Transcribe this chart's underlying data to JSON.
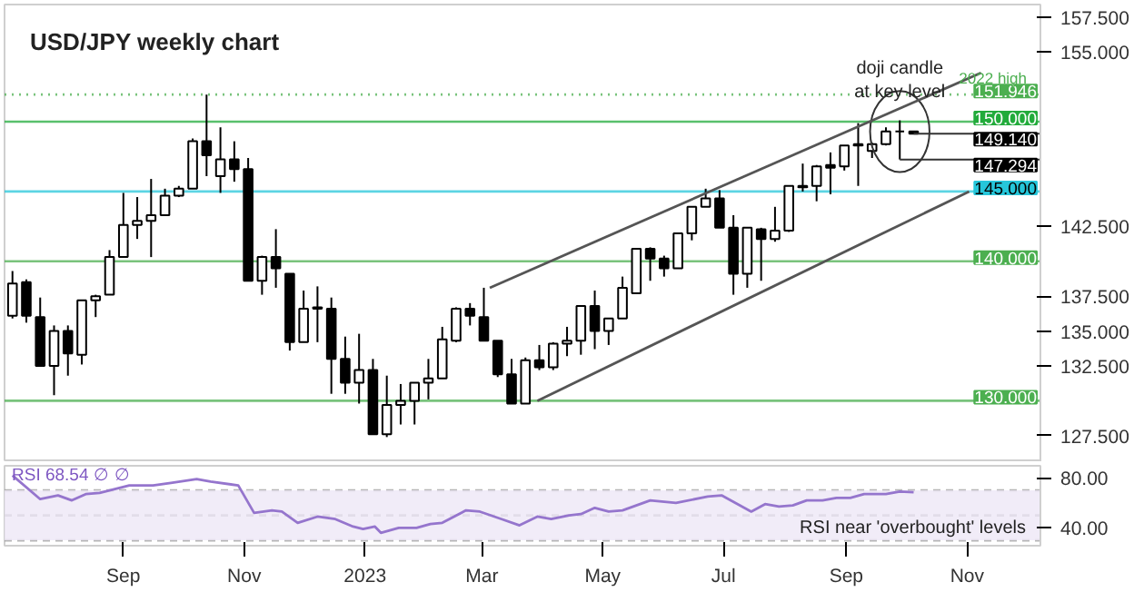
{
  "chart_data": [
    {
      "type": "candlestick",
      "title": "USD/JPY weekly chart",
      "x": [
        "2022-07-07",
        "2022-07-14",
        "2022-07-21",
        "2022-07-28",
        "2022-08-04",
        "2022-08-11",
        "2022-08-18",
        "2022-08-25",
        "2022-09-01",
        "2022-09-08",
        "2022-09-15",
        "2022-09-22",
        "2022-09-29",
        "2022-10-06",
        "2022-10-13",
        "2022-10-20",
        "2022-10-27",
        "2022-11-03",
        "2022-11-10",
        "2022-11-17",
        "2022-11-24",
        "2022-12-01",
        "2022-12-08",
        "2022-12-15",
        "2022-12-22",
        "2022-12-29",
        "2023-01-05",
        "2023-01-12",
        "2023-01-19",
        "2023-01-26",
        "2023-02-02",
        "2023-02-09",
        "2023-02-16",
        "2023-02-23",
        "2023-03-02",
        "2023-03-09",
        "2023-03-16",
        "2023-03-23",
        "2023-03-30",
        "2023-04-06",
        "2023-04-13",
        "2023-04-20",
        "2023-04-27",
        "2023-05-04",
        "2023-05-11",
        "2023-05-18",
        "2023-05-25",
        "2023-06-01",
        "2023-06-08",
        "2023-06-15",
        "2023-06-22",
        "2023-06-29",
        "2023-07-06",
        "2023-07-13",
        "2023-07-20",
        "2023-07-27",
        "2023-08-03",
        "2023-08-10",
        "2023-08-17",
        "2023-08-24",
        "2023-08-31",
        "2023-09-07",
        "2023-09-14",
        "2023-09-21",
        "2023-09-28",
        "2023-10-05"
      ],
      "ohlc": [
        [
          136.1,
          139.3,
          135.9,
          138.4
        ],
        [
          138.5,
          138.7,
          135.6,
          136.1
        ],
        [
          136.0,
          137.4,
          132.5,
          132.5
        ],
        [
          132.5,
          135.4,
          130.4,
          135.0
        ],
        [
          135.0,
          135.4,
          131.8,
          133.4
        ],
        [
          133.3,
          137.2,
          132.6,
          137.2
        ],
        [
          137.2,
          137.6,
          136.0,
          137.5
        ],
        [
          137.6,
          140.8,
          137.6,
          140.3
        ],
        [
          140.3,
          144.9,
          140.3,
          142.6
        ],
        [
          142.6,
          144.6,
          141.6,
          142.9
        ],
        [
          142.9,
          145.9,
          140.3,
          143.3
        ],
        [
          143.3,
          145.2,
          143.3,
          144.7
        ],
        [
          144.7,
          145.4,
          144.6,
          145.2
        ],
        [
          145.2,
          148.8,
          145.2,
          148.6
        ],
        [
          148.6,
          151.946,
          146.1,
          147.6
        ],
        [
          146.1,
          149.6,
          144.9,
          147.3
        ],
        [
          147.3,
          148.6,
          145.7,
          146.6
        ],
        [
          146.6,
          147.4,
          138.6,
          138.6
        ],
        [
          138.6,
          140.4,
          137.6,
          140.3
        ],
        [
          140.3,
          142.3,
          138.1,
          139.5
        ],
        [
          139.1,
          139.1,
          133.6,
          134.2
        ],
        [
          134.2,
          137.9,
          134.2,
          136.6
        ],
        [
          136.7,
          138.2,
          134.2,
          136.6
        ],
        [
          136.6,
          137.4,
          130.5,
          133.0
        ],
        [
          133.0,
          134.6,
          130.5,
          131.3
        ],
        [
          131.3,
          134.8,
          129.8,
          132.2
        ],
        [
          132.2,
          133.0,
          127.6,
          127.6
        ],
        [
          127.6,
          131.8,
          127.4,
          129.7
        ],
        [
          129.7,
          131.2,
          128.3,
          130.0
        ],
        [
          130.0,
          131.3,
          128.3,
          131.3
        ],
        [
          131.3,
          133.0,
          130.1,
          131.6
        ],
        [
          131.6,
          135.3,
          131.6,
          134.4
        ],
        [
          134.3,
          136.7,
          134.2,
          136.6
        ],
        [
          136.6,
          137.0,
          135.4,
          136.1
        ],
        [
          136.0,
          138.1,
          134.3,
          134.3
        ],
        [
          134.3,
          134.3,
          131.7,
          131.9
        ],
        [
          131.9,
          133.0,
          129.8,
          129.8
        ],
        [
          129.8,
          133.1,
          129.8,
          132.9
        ],
        [
          132.9,
          134.0,
          132.2,
          132.4
        ],
        [
          132.4,
          134.2,
          132.2,
          134.1
        ],
        [
          134.1,
          135.3,
          133.2,
          134.3
        ],
        [
          134.3,
          136.8,
          133.3,
          136.8
        ],
        [
          136.8,
          137.9,
          133.7,
          135.0
        ],
        [
          135.0,
          135.9,
          134.0,
          135.9
        ],
        [
          135.9,
          138.9,
          135.9,
          138.1
        ],
        [
          137.7,
          140.9,
          137.7,
          140.9
        ],
        [
          140.9,
          141.0,
          138.6,
          140.2
        ],
        [
          140.2,
          140.4,
          138.9,
          139.5
        ],
        [
          139.5,
          142.0,
          139.5,
          142.0
        ],
        [
          142.0,
          143.9,
          141.5,
          143.9
        ],
        [
          143.9,
          145.2,
          143.9,
          144.5
        ],
        [
          144.5,
          145.1,
          142.4,
          142.4
        ],
        [
          142.4,
          143.3,
          137.6,
          139.1
        ],
        [
          139.1,
          142.4,
          138.1,
          142.4
        ],
        [
          142.3,
          142.4,
          138.6,
          141.6
        ],
        [
          141.6,
          143.9,
          141.4,
          142.2
        ],
        [
          142.2,
          145.4,
          142.1,
          145.4
        ],
        [
          145.3,
          147.0,
          145.0,
          145.4
        ],
        [
          145.4,
          146.9,
          144.3,
          146.8
        ],
        [
          146.9,
          147.8,
          144.8,
          146.7
        ],
        [
          146.8,
          148.3,
          146.5,
          148.3
        ],
        [
          148.3,
          149.9,
          145.4,
          148.4
        ],
        [
          147.9,
          148.5,
          147.4,
          148.4
        ],
        [
          148.4,
          149.6,
          148.3,
          149.3
        ],
        [
          149.3,
          150.1,
          147.294,
          149.3
        ],
        [
          149.3,
          149.3,
          149.1,
          149.14
        ]
      ],
      "series": [
        {
          "type": "line",
          "color": "#555555",
          "x": [
            "2023-03-05",
            "2023-11-08"
          ],
          "values": [
            138.1,
            153.5
          ]
        },
        {
          "type": "line",
          "color": "#555555",
          "x": [
            "2023-03-29",
            "2023-11-02"
          ],
          "values": [
            130.0,
            145.0
          ]
        }
      ],
      "xlim": [
        "2022-07-03",
        "2023-12-08"
      ],
      "ylim": [
        125.6,
        158.4
      ],
      "yticks": [
        {
          "value": 127.5,
          "label": "127.500"
        },
        {
          "value": 132.5,
          "label": "132.500"
        },
        {
          "value": 135,
          "label": "135.000"
        },
        {
          "value": 137.5,
          "label": "137.500"
        },
        {
          "value": 142.5,
          "label": "142.500"
        },
        {
          "value": 155,
          "label": "155.000"
        },
        {
          "value": 157.5,
          "label": "157.500"
        }
      ],
      "ref_lines": [
        {
          "axis": "y",
          "value": 151.946,
          "label": "151.946",
          "color": "#4caf50",
          "line_style": "dotted"
        },
        {
          "axis": "y",
          "value": 150,
          "label": "150.000",
          "color": "#22ab3b",
          "line_style": "solid"
        },
        {
          "axis": "y",
          "value": 145,
          "label": "145.000",
          "color": "#26c6da",
          "line_style": "solid"
        },
        {
          "axis": "y",
          "value": 140,
          "label": "140.000",
          "color": "#4caf50",
          "line_style": "solid"
        },
        {
          "axis": "y",
          "value": 130,
          "label": "130.000",
          "color": "#4caf50",
          "line_style": "solid"
        }
      ],
      "annotations": [
        "doji candle\nat key level",
        {
          "text": "2022 high",
          "x": "2023-11-14",
          "y": 151.946
        },
        {
          "text": "149.140",
          "x": "2023-10-05",
          "y": 149.14
        },
        {
          "text": "147.294",
          "x": "2023-09-28",
          "y": 147.294
        }
      ],
      "tick_labels": "y",
      "grid": false
    },
    {
      "type": "line",
      "title": "RSI 68.54 ∅ ∅",
      "series": [
        {
          "color": "#9575cd",
          "x": [
            "2022-07-07",
            "2022-07-21",
            "2022-07-30",
            "2022-08-06",
            "2022-08-13",
            "2022-08-20",
            "2022-09-04",
            "2022-09-16",
            "2022-09-25",
            "2022-10-08",
            "2022-10-15",
            "2022-10-29",
            "2022-11-06",
            "2022-11-15",
            "2022-11-20",
            "2022-11-28",
            "2022-12-08",
            "2022-12-17",
            "2022-12-26",
            "2022-12-31",
            "2023-01-06",
            "2023-01-09",
            "2023-01-18",
            "2023-01-27",
            "2023-02-03",
            "2023-02-09",
            "2023-02-21",
            "2023-02-28",
            "2023-03-11",
            "2023-03-20",
            "2023-03-29",
            "2023-04-05",
            "2023-04-14",
            "2023-04-20",
            "2023-04-27",
            "2023-05-04",
            "2023-05-11",
            "2023-05-25",
            "2023-06-07",
            "2023-06-23",
            "2023-06-30",
            "2023-07-15",
            "2023-07-22",
            "2023-07-29",
            "2023-08-05",
            "2023-08-12",
            "2023-08-20",
            "2023-08-27",
            "2023-09-03",
            "2023-09-10",
            "2023-09-21",
            "2023-09-28",
            "2023-10-05"
          ],
          "values": [
            82,
            63,
            66,
            62,
            67,
            68,
            74,
            74,
            76,
            79,
            77,
            74,
            52,
            54,
            53,
            44,
            49,
            47,
            41,
            39,
            41,
            36,
            40,
            40,
            43,
            44,
            54,
            53,
            47,
            42,
            49,
            47,
            50,
            51,
            56,
            53,
            54,
            62,
            60,
            65,
            66,
            53,
            59,
            57,
            58,
            62,
            62,
            64,
            64,
            67,
            67,
            69,
            68.54
          ]
        }
      ],
      "xlim": [
        "2022-07-03",
        "2023-12-08"
      ],
      "ylim": [
        25.7,
        89.7
      ],
      "xticks": [
        {
          "value": "2022-09-01",
          "label": "Sep"
        },
        {
          "value": "2022-11-01",
          "label": "Nov"
        },
        {
          "value": "2023-01-01",
          "label": "2023"
        },
        {
          "value": "2023-03-01",
          "label": "Mar"
        },
        {
          "value": "2023-05-01",
          "label": "May"
        },
        {
          "value": "2023-07-01",
          "label": "Jul"
        },
        {
          "value": "2023-09-01",
          "label": "Sep"
        },
        {
          "value": "2023-11-01",
          "label": "Nov"
        }
      ],
      "yticks": [
        {
          "value": 40,
          "label": "40.00"
        },
        {
          "value": 80,
          "label": "80.00"
        }
      ],
      "ref_lines": [
        {
          "axis": "y",
          "value": 70,
          "color": "#9e9e9e",
          "line_style": "dashed"
        },
        {
          "axis": "y",
          "value": 50,
          "color": "#9e9e9e",
          "line_style": "dashed"
        },
        {
          "axis": "y",
          "value": 30,
          "color": "#9e9e9e",
          "line_style": "dashed"
        }
      ],
      "bands": [
        {
          "axis": "y",
          "from": 30,
          "to": 70,
          "color": "#ede7f6"
        }
      ],
      "annotations": [
        "RSI near 'overbought' levels"
      ],
      "grid": false
    }
  ]
}
